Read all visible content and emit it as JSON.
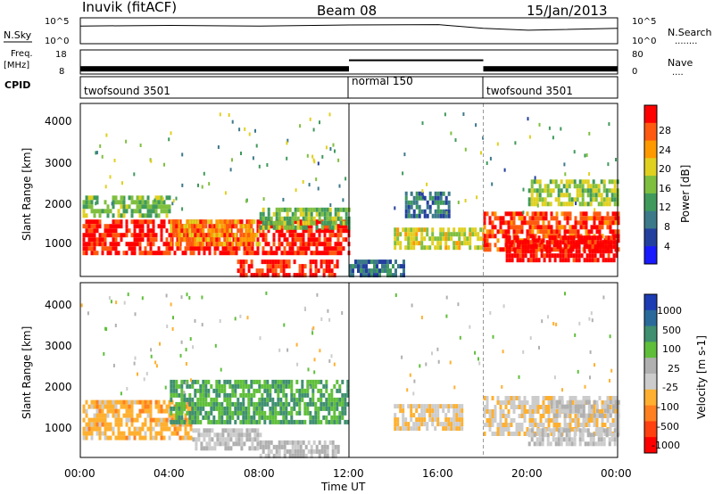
{
  "header": {
    "station": "Inuvik (fitACF)",
    "beam": "Beam 08",
    "date": "15/Jan/2013"
  },
  "nsky_panel": {
    "left_label": "N.Sky",
    "right_label": "N.Search",
    "right_legend": "........",
    "left_ticks": [
      "10^5",
      "10^0"
    ],
    "right_ticks": [
      "10^5",
      "10^0"
    ]
  },
  "freq_panel": {
    "left_label_line1": "Freq.",
    "left_label_line2": "[MHz]",
    "left_ticks": [
      "18",
      "8"
    ],
    "right_ticks": [
      "80",
      "0"
    ],
    "right_label": "Nave",
    "right_legend": "...."
  },
  "cpid_panel": {
    "label": "CPID",
    "modes": [
      "twofsound 3501",
      "normal 150",
      "twofsound 3501"
    ]
  },
  "x_axis": {
    "tick_labels": [
      "00:00",
      "04:00",
      "08:00",
      "12:00",
      "16:00",
      "20:00",
      "00:00"
    ],
    "title": "Time UT"
  },
  "power_panel": {
    "ylabel": "Slant Range [km]",
    "y_ticks": [
      "4000",
      "3000",
      "2000",
      "1000"
    ],
    "colorbar_title": "Power [dB]",
    "colorbar_ticks": [
      "28",
      "24",
      "20",
      "16",
      "12",
      "8",
      "4"
    ],
    "colors": [
      "#1a1aff",
      "#24409e",
      "#3c7a8a",
      "#3f9a5c",
      "#7fbf3f",
      "#e0d020",
      "#ff9900",
      "#ff5a10",
      "#ff0000"
    ]
  },
  "velocity_panel": {
    "ylabel": "Slant Range [km]",
    "y_ticks": [
      "4000",
      "3000",
      "2000",
      "1000"
    ],
    "colorbar_title": "Velocity [m s-1]",
    "colorbar_ticks": [
      "1000",
      "500",
      "100",
      "25",
      "-25",
      "-100",
      "-500",
      "-1000"
    ],
    "colors": [
      "#1c3cb4",
      "#2a6a9a",
      "#3f8f70",
      "#5fbf3a",
      "#b0b0b0",
      "#cccccc",
      "#ffb030",
      "#ff8020",
      "#ff4010",
      "#ff0000"
    ]
  },
  "chart_data": [
    {
      "type": "line",
      "title": "N.Sky",
      "x_range_hours": [
        0,
        24
      ],
      "ylim": [
        1,
        100000
      ],
      "y_scale": "log",
      "series": [
        {
          "name": "N.Sky",
          "x": [
            0,
            4,
            8,
            12,
            16,
            18,
            20,
            24
          ],
          "values": [
            3000,
            4000,
            3000,
            5000,
            6000,
            1000,
            400,
            1000
          ]
        }
      ]
    },
    {
      "type": "line",
      "title": "Freq.",
      "x_range_hours": [
        0,
        24
      ],
      "ylim": [
        8,
        18
      ],
      "series": [
        {
          "name": "Freq.",
          "x": [
            0,
            12,
            12,
            18,
            18,
            24
          ],
          "values": [
            10,
            10,
            14,
            14,
            10,
            10
          ]
        }
      ]
    },
    {
      "type": "heatmap",
      "title": "Power",
      "xlabel": "Time UT",
      "ylabel": "Slant Range [km]",
      "x_range_hours": [
        0,
        24
      ],
      "ylim": [
        180,
        4500
      ],
      "colorbar_range": [
        0,
        30
      ],
      "regions": [
        {
          "t": [
            0.1,
            12
          ],
          "r": [
            800,
            1600
          ],
          "value": 28
        },
        {
          "t": [
            0.1,
            4
          ],
          "r": [
            1700,
            2200
          ],
          "value": 14
        },
        {
          "t": [
            4,
            8
          ],
          "r": [
            1000,
            1600
          ],
          "value": 22
        },
        {
          "t": [
            7,
            11.5
          ],
          "r": [
            250,
            600
          ],
          "value": 28
        },
        {
          "t": [
            8,
            12
          ],
          "r": [
            1400,
            1900
          ],
          "value": 14
        },
        {
          "t": [
            12,
            14.5
          ],
          "r": [
            200,
            600
          ],
          "value": 8
        },
        {
          "t": [
            14,
            18
          ],
          "r": [
            900,
            1400
          ],
          "value": 18
        },
        {
          "t": [
            14.5,
            16.5
          ],
          "r": [
            1700,
            2300
          ],
          "value": 8
        },
        {
          "t": [
            18,
            24
          ],
          "r": [
            800,
            1800
          ],
          "value": 26
        },
        {
          "t": [
            19,
            24
          ],
          "r": [
            600,
            1200
          ],
          "value": 30
        },
        {
          "t": [
            20,
            24
          ],
          "r": [
            2000,
            2600
          ],
          "value": 16
        }
      ]
    },
    {
      "type": "heatmap",
      "title": "Velocity",
      "xlabel": "Time UT",
      "ylabel": "Slant Range [km]",
      "x_range_hours": [
        0,
        24
      ],
      "ylim": [
        180,
        4500
      ],
      "colorbar_range": [
        -1000,
        1000
      ],
      "regions": [
        {
          "t": [
            0.1,
            5
          ],
          "r": [
            700,
            1600
          ],
          "value": -300
        },
        {
          "t": [
            4,
            12
          ],
          "r": [
            1100,
            2100
          ],
          "value": 400
        },
        {
          "t": [
            5,
            8
          ],
          "r": [
            400,
            900
          ],
          "value": 0
        },
        {
          "t": [
            8,
            11.5
          ],
          "r": [
            250,
            600
          ],
          "value": 50
        },
        {
          "t": [
            14,
            17
          ],
          "r": [
            900,
            1500
          ],
          "value": -200
        },
        {
          "t": [
            18,
            24
          ],
          "r": [
            800,
            1700
          ],
          "value": -150
        },
        {
          "t": [
            20,
            24
          ],
          "r": [
            500,
            900
          ],
          "value": 0
        },
        {
          "t": [
            21,
            24
          ],
          "r": [
            1200,
            1600
          ],
          "value": 0
        }
      ]
    }
  ]
}
